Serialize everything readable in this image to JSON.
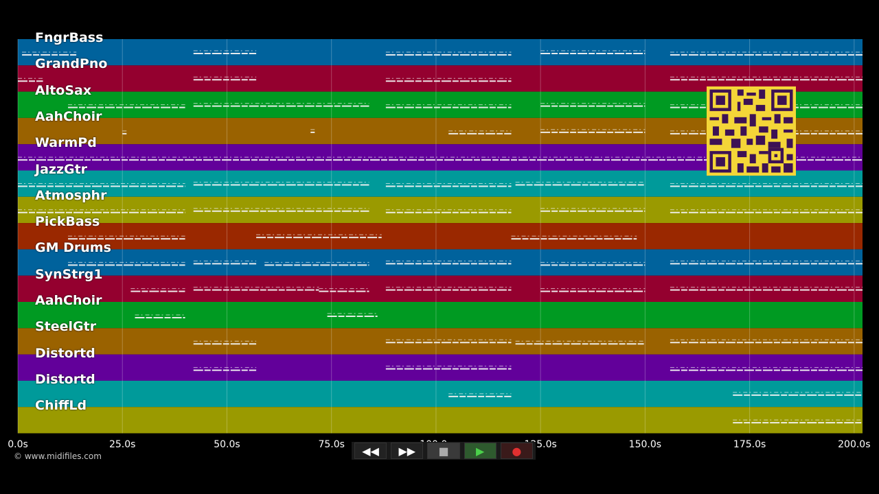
{
  "tracks": [
    {
      "name": "FngrBass",
      "color": "#00629c"
    },
    {
      "name": "GrandPno",
      "color": "#94002f"
    },
    {
      "name": "AltoSax",
      "color": "#009a22"
    },
    {
      "name": "AahChoir",
      "color": "#9a6200"
    },
    {
      "name": "WarmPd",
      "color": "#62009a"
    },
    {
      "name": "JazzGtr",
      "color": "#009a9a"
    },
    {
      "name": "Atmosphr",
      "color": "#9a9a00"
    },
    {
      "name": "PickBass",
      "color": "#9a2800"
    },
    {
      "name": "GM Drums",
      "color": "#00629c"
    },
    {
      "name": "SynStrg1",
      "color": "#94002f"
    },
    {
      "name": "AahChoir",
      "color": "#009a22"
    },
    {
      "name": "SteelGtr",
      "color": "#9a6200"
    },
    {
      "name": "Distortd",
      "color": "#62009a"
    },
    {
      "name": "Distortd",
      "color": "#009a9a"
    },
    {
      "name": "ChiffLd",
      "color": "#9a9a00"
    }
  ],
  "timeline": {
    "ticks": [
      "0.0s",
      "25.0s",
      "50.0s",
      "75.0s",
      "100.0s",
      "125.0s",
      "150.0s",
      "175.0s",
      "200.0s"
    ]
  },
  "copyright": "© www.midifiles.com",
  "transport": {
    "rewind": "◀◀",
    "fast_forward": "▶▶",
    "stop": "■",
    "play": "▶",
    "record": "●"
  },
  "qr_code": "qr-code-icon",
  "notes": [
    [
      [
        1,
        14
      ],
      [
        42,
        57
      ],
      [
        88,
        118
      ],
      [
        125,
        150
      ],
      [
        156,
        202
      ]
    ],
    [
      [
        0,
        6
      ],
      [
        42,
        57
      ],
      [
        88,
        118
      ],
      [
        156,
        202
      ]
    ],
    [
      [
        12,
        40
      ],
      [
        42,
        84
      ],
      [
        88,
        118
      ],
      [
        125,
        150
      ],
      [
        156,
        202
      ]
    ],
    [
      [
        25,
        26
      ],
      [
        70,
        71
      ],
      [
        103,
        118
      ],
      [
        125,
        150
      ],
      [
        156,
        202
      ]
    ],
    [
      [
        0,
        202
      ]
    ],
    [
      [
        0,
        40
      ],
      [
        42,
        84
      ],
      [
        88,
        118
      ],
      [
        119,
        150
      ],
      [
        156,
        202
      ]
    ],
    [
      [
        0,
        40
      ],
      [
        42,
        84
      ],
      [
        88,
        118
      ],
      [
        125,
        150
      ],
      [
        156,
        202
      ]
    ],
    [
      [
        12,
        40
      ],
      [
        57,
        87
      ],
      [
        118,
        148
      ]
    ],
    [
      [
        12,
        40
      ],
      [
        42,
        57
      ],
      [
        59,
        84
      ],
      [
        88,
        118
      ],
      [
        125,
        150
      ],
      [
        156,
        202
      ]
    ],
    [
      [
        27,
        40
      ],
      [
        42,
        72
      ],
      [
        72,
        84
      ],
      [
        88,
        118
      ],
      [
        125,
        150
      ],
      [
        156,
        202
      ]
    ],
    [
      [
        28,
        40
      ],
      [
        74,
        86
      ]
    ],
    [
      [
        42,
        57
      ],
      [
        88,
        118
      ],
      [
        119,
        150
      ],
      [
        156,
        202
      ]
    ],
    [
      [
        42,
        57
      ],
      [
        88,
        118
      ],
      [
        156,
        202
      ]
    ],
    [
      [
        103,
        118
      ],
      [
        171,
        202
      ]
    ],
    [
      [
        171,
        202
      ]
    ]
  ]
}
